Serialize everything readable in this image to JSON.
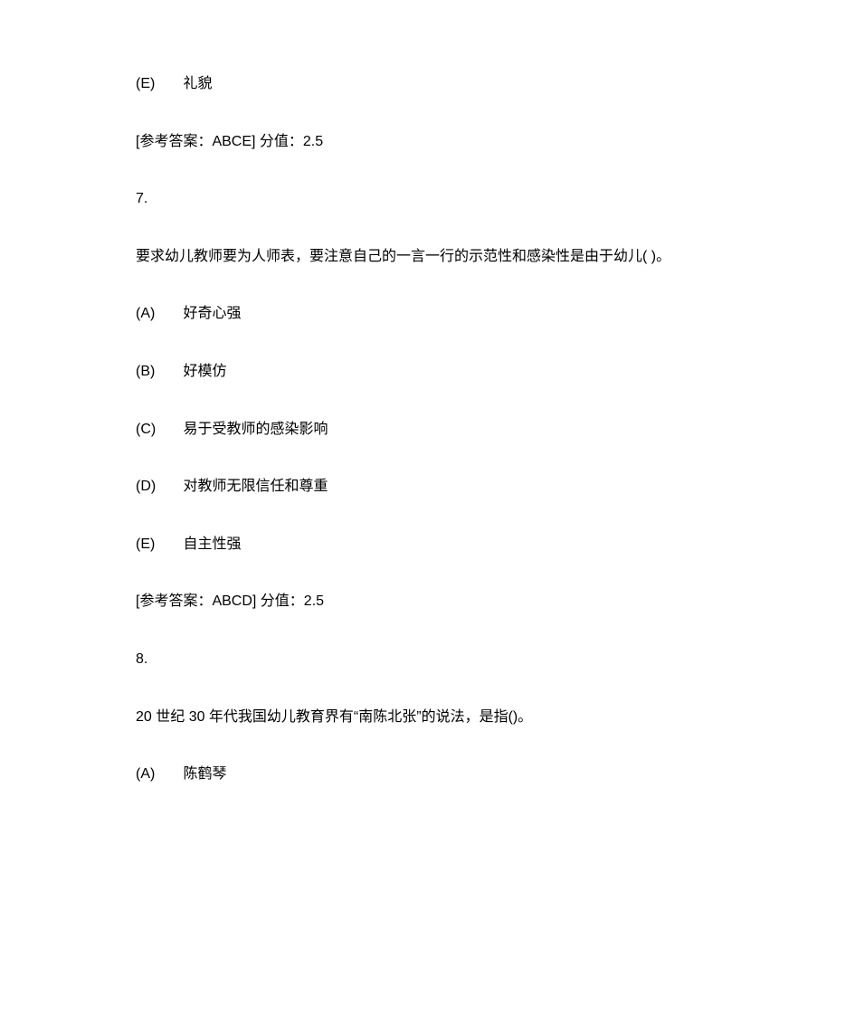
{
  "text_color": "#000000",
  "background_color": "#ffffff",
  "font_size": 16,
  "line_spacing": 38,
  "q6_remainder": {
    "option_e": {
      "marker": "(E)",
      "text": "礼貌"
    },
    "answer_line": "[参考答案：ABCE]   分值：2.5"
  },
  "q7": {
    "number": "7.",
    "stem": "要求幼儿教师要为人师表，要注意自己的一言一行的示范性和感染性是由于幼儿(    )。",
    "options": {
      "a": {
        "marker": "(A)",
        "text": "好奇心强"
      },
      "b": {
        "marker": "(B)",
        "text": "好模仿"
      },
      "c": {
        "marker": "(C)",
        "text": "易于受教师的感染影响"
      },
      "d": {
        "marker": "(D)",
        "text": "对教师无限信任和尊重"
      },
      "e": {
        "marker": "(E)",
        "text": "自主性强"
      }
    },
    "answer_line": "[参考答案：ABCD]   分值：2.5"
  },
  "q8": {
    "number": "8.",
    "stem": "20 世纪 30 年代我国幼儿教育界有“南陈北张”的说法，是指()。",
    "options": {
      "a": {
        "marker": "(A)",
        "text": "陈鹤琴"
      }
    }
  }
}
